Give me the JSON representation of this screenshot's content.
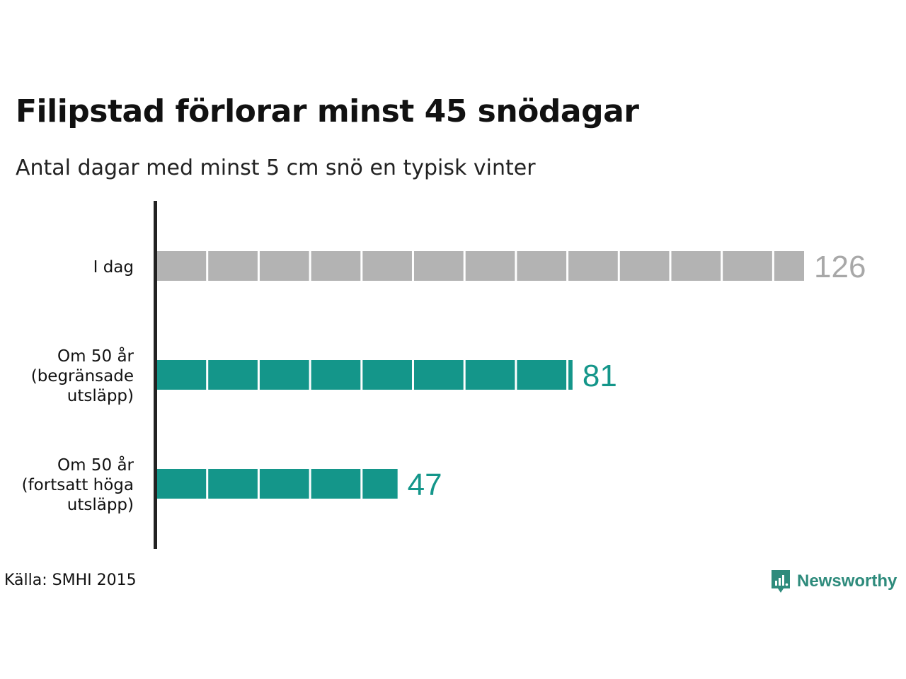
{
  "title": "Filipstad förlorar minst 45 snödagar",
  "subtitle": "Antal dagar med minst 5 cm snö en typisk vinter",
  "source": "Källa: SMHI 2015",
  "brand": {
    "name": "Newsworthy",
    "icon": "newsworthy-logo-icon",
    "color": "#2e8b7c"
  },
  "colors": {
    "today": "#b3b3b3",
    "today_label": "#a8a8a8",
    "future": "#14968a",
    "axis": "#222222"
  },
  "chart_data": {
    "type": "bar",
    "orientation": "horizontal",
    "unit_per_segment": 10,
    "categories": [
      [
        "I dag"
      ],
      [
        "Om 50 år",
        "(begränsade",
        "utsläpp)"
      ],
      [
        "Om 50 år",
        "(fortsatt höga",
        "utsläpp)"
      ]
    ],
    "values": [
      126,
      81,
      47
    ],
    "value_labels": [
      "126",
      "81",
      "47"
    ],
    "bar_colors": [
      "#b3b3b3",
      "#14968a",
      "#14968a"
    ],
    "xlim": [
      0,
      126
    ],
    "grid": false,
    "legend": "none"
  }
}
